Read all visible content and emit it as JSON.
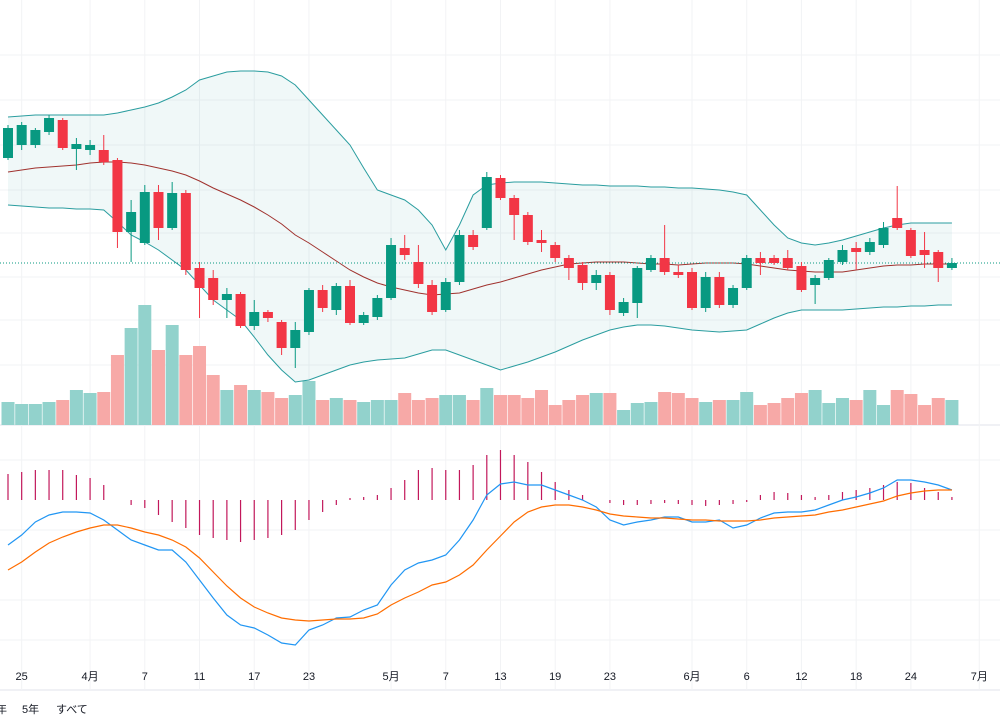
{
  "chart_data": {
    "type": "candlestick",
    "categories": [
      null,
      "25",
      null,
      null,
      null,
      null,
      "4月",
      null,
      null,
      null,
      "7",
      null,
      null,
      null,
      "11",
      null,
      null,
      null,
      "17",
      null,
      null,
      null,
      "23",
      null,
      null,
      null,
      null,
      null,
      "5月",
      null,
      null,
      null,
      "7",
      null,
      null,
      null,
      "13",
      null,
      null,
      null,
      "19",
      null,
      null,
      null,
      "23",
      null,
      null,
      null,
      null,
      null,
      "6月",
      null,
      null,
      null,
      "6",
      null,
      null,
      null,
      "12",
      null,
      null,
      null,
      "18",
      null,
      null,
      null,
      "24",
      null,
      null,
      null,
      null,
      "7月"
    ],
    "open": [
      442,
      455,
      455,
      468,
      480,
      451,
      450,
      450,
      440,
      368,
      357,
      408,
      372,
      407,
      332,
      322,
      300,
      306,
      274,
      288,
      278,
      252,
      268,
      310,
      290,
      314,
      277,
      283,
      302,
      352,
      338,
      315,
      290,
      318,
      365,
      372,
      422,
      402,
      385,
      360,
      355,
      342,
      335,
      317,
      325,
      287,
      297,
      330,
      342,
      328,
      328,
      292,
      323,
      295,
      312,
      342,
      342,
      342,
      334,
      315,
      322,
      338,
      352,
      348,
      355,
      382,
      370,
      350,
      348,
      332,
      null,
      null
    ],
    "high": [
      475,
      478,
      472,
      485,
      482,
      462,
      460,
      465,
      442,
      400,
      415,
      415,
      418,
      410,
      338,
      330,
      312,
      308,
      300,
      290,
      280,
      278,
      312,
      315,
      317,
      320,
      288,
      305,
      362,
      365,
      355,
      320,
      322,
      370,
      370,
      428,
      425,
      405,
      388,
      370,
      358,
      345,
      338,
      330,
      328,
      302,
      334,
      345,
      375,
      335,
      332,
      328,
      328,
      315,
      345,
      348,
      345,
      350,
      338,
      325,
      342,
      355,
      358,
      362,
      378,
      414,
      372,
      368,
      350,
      342,
      null,
      null
    ],
    "low": [
      440,
      450,
      452,
      465,
      450,
      430,
      445,
      435,
      352,
      338,
      355,
      360,
      370,
      325,
      282,
      295,
      282,
      272,
      270,
      278,
      245,
      232,
      265,
      288,
      285,
      275,
      275,
      280,
      300,
      340,
      312,
      285,
      288,
      315,
      350,
      370,
      400,
      360,
      355,
      348,
      338,
      320,
      310,
      310,
      285,
      284,
      282,
      328,
      325,
      322,
      290,
      288,
      292,
      292,
      310,
      325,
      335,
      330,
      308,
      296,
      320,
      335,
      330,
      345,
      352,
      370,
      342,
      332,
      318,
      330,
      null,
      null
    ],
    "close": [
      472,
      475,
      470,
      482,
      452,
      456,
      455,
      438,
      368,
      388,
      408,
      372,
      407,
      330,
      312,
      300,
      306,
      274,
      288,
      282,
      252,
      270,
      310,
      292,
      314,
      277,
      285,
      302,
      355,
      345,
      316,
      288,
      318,
      365,
      353,
      423,
      402,
      385,
      358,
      357,
      342,
      332,
      317,
      325,
      290,
      298,
      332,
      342,
      328,
      325,
      292,
      323,
      295,
      312,
      342,
      337,
      337,
      332,
      310,
      322,
      340,
      350,
      348,
      358,
      372,
      372,
      344,
      345,
      332,
      337,
      null,
      null
    ],
    "up_color": "#089981",
    "down_color": "#f23645",
    "ylim": [
      175,
      600
    ],
    "last_price": 337,
    "bb_upper": [
      483,
      484,
      485,
      485,
      485,
      485,
      485,
      485,
      487,
      490,
      493,
      497,
      503,
      510,
      520,
      524,
      528,
      529,
      529,
      528,
      524,
      515,
      500,
      485,
      470,
      455,
      432,
      410,
      405,
      400,
      390,
      375,
      350,
      375,
      405,
      415,
      417,
      418,
      418,
      418,
      417,
      416,
      415,
      415,
      414,
      414,
      414,
      413,
      413,
      412,
      412,
      411,
      410,
      408,
      405,
      390,
      375,
      362,
      357,
      355,
      357,
      360,
      364,
      368,
      372,
      375,
      377,
      377,
      377,
      377,
      null,
      null
    ],
    "bb_middle": [
      428,
      430,
      432,
      433,
      434,
      435,
      437,
      438,
      438,
      437,
      435,
      432,
      429,
      425,
      419,
      412,
      406,
      400,
      393,
      385,
      376,
      365,
      357,
      348,
      339,
      330,
      323,
      317,
      313,
      310,
      307,
      305,
      306,
      307,
      311,
      315,
      318,
      322,
      326,
      330,
      333,
      336,
      337,
      338,
      338,
      338,
      337,
      336,
      336,
      335,
      336,
      337,
      337,
      337,
      336,
      334,
      332,
      330,
      329,
      328,
      328,
      328,
      330,
      332,
      334,
      335,
      335,
      336,
      336,
      336,
      null,
      null
    ],
    "bb_lower": [
      395,
      394,
      393,
      392,
      392,
      391,
      391,
      390,
      378,
      365,
      358,
      350,
      340,
      330,
      315,
      300,
      290,
      280,
      263,
      245,
      230,
      218,
      220,
      225,
      230,
      235,
      238,
      240,
      241,
      242,
      246,
      250,
      250,
      245,
      240,
      235,
      230,
      234,
      238,
      243,
      248,
      254,
      260,
      265,
      270,
      273,
      275,
      275,
      274,
      272,
      270,
      269,
      268,
      269,
      270,
      276,
      282,
      287,
      290,
      290,
      290,
      290,
      291,
      292,
      293,
      293,
      294,
      294,
      295,
      295,
      null,
      null
    ],
    "band_color": "#2a9d9f",
    "middle_color": "#a0322e",
    "volume": [
      23,
      21,
      21,
      23,
      25,
      35,
      32,
      33,
      70,
      97,
      120,
      75,
      100,
      70,
      79,
      50,
      35,
      40,
      35,
      33,
      27,
      30,
      44,
      25,
      27,
      25,
      23,
      25,
      25,
      32,
      25,
      27,
      30,
      30,
      25,
      37,
      30,
      30,
      27,
      35,
      20,
      25,
      30,
      32,
      32,
      15,
      22,
      23,
      33,
      32,
      27,
      23,
      25,
      25,
      33,
      20,
      22,
      27,
      32,
      35,
      22,
      27,
      25,
      35,
      20,
      35,
      31,
      20,
      27,
      25,
      null,
      null
    ],
    "volume_lim": [
      0,
      425
    ],
    "volume_up_color": "#92d2cc",
    "volume_down_color": "#f7a9a7",
    "macd_hist": [
      26,
      28,
      30,
      30,
      30,
      25,
      22,
      15,
      0,
      -5,
      -8,
      -15,
      -22,
      -28,
      -35,
      -38,
      -40,
      -42,
      -40,
      -38,
      -35,
      -30,
      -20,
      -12,
      -5,
      2,
      3,
      5,
      12,
      20,
      30,
      32,
      30,
      30,
      35,
      45,
      50,
      45,
      38,
      28,
      18,
      10,
      5,
      0,
      -3,
      -5,
      -5,
      -4,
      -3,
      -4,
      -5,
      -6,
      -5,
      -4,
      -2,
      5,
      8,
      7,
      5,
      3,
      5,
      8,
      10,
      12,
      15,
      18,
      17,
      12,
      8,
      3,
      null,
      null
    ],
    "macd": [
      -45,
      -35,
      -22,
      -15,
      -12,
      -12,
      -13,
      -20,
      -30,
      -40,
      -45,
      -50,
      -50,
      -62,
      -80,
      -98,
      -115,
      -125,
      -128,
      -135,
      -143,
      -145,
      -130,
      -125,
      -118,
      -117,
      -110,
      -105,
      -85,
      -70,
      -63,
      -60,
      -55,
      -40,
      -20,
      5,
      16,
      18,
      15,
      15,
      10,
      5,
      0,
      -7,
      -20,
      -25,
      -22,
      -20,
      -17,
      -17,
      -22,
      -22,
      -20,
      -28,
      -25,
      -18,
      -13,
      -12,
      -12,
      -10,
      -5,
      0,
      3,
      7,
      12,
      20,
      20,
      18,
      15,
      10,
      null,
      null
    ],
    "signal": [
      -70,
      -62,
      -52,
      -43,
      -37,
      -32,
      -28,
      -25,
      -25,
      -28,
      -32,
      -35,
      -40,
      -47,
      -58,
      -72,
      -86,
      -98,
      -107,
      -113,
      -118,
      -120,
      -121,
      -120,
      -119,
      -119,
      -118,
      -114,
      -105,
      -98,
      -92,
      -85,
      -82,
      -75,
      -65,
      -50,
      -36,
      -22,
      -12,
      -7,
      -5,
      -5,
      -7,
      -10,
      -14,
      -16,
      -17,
      -18,
      -18,
      -19,
      -20,
      -20,
      -21,
      -21,
      -21,
      -20,
      -18,
      -17,
      -16,
      -15,
      -12,
      -10,
      -7,
      -4,
      -1,
      4,
      7,
      9,
      10,
      10,
      null,
      null
    ],
    "macd_lim": [
      -190,
      60
    ],
    "hist_color": "#c2185b",
    "macd_color": "#2196f3",
    "signal_color": "#ff6d00",
    "grid": true
  },
  "range_buttons": [
    "年",
    "5年",
    "すべて"
  ]
}
